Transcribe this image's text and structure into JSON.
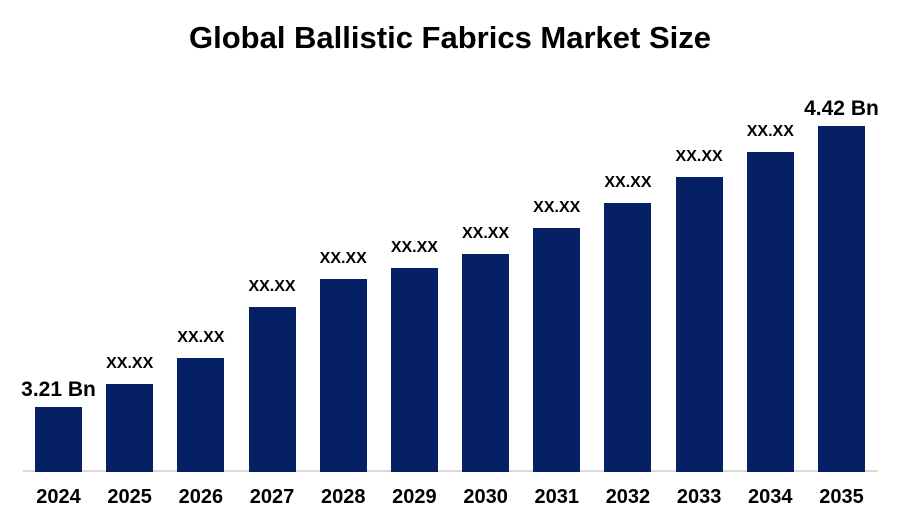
{
  "page": {
    "background_color": "#ffffff"
  },
  "chart_data": {
    "type": "bar",
    "title": "Global Ballistic Fabrics Market Size",
    "xlabel": "",
    "ylabel": "",
    "unit": "Bn",
    "categories": [
      "2024",
      "2025",
      "2026",
      "2027",
      "2028",
      "2029",
      "2030",
      "2031",
      "2032",
      "2033",
      "2034",
      "2035"
    ],
    "values": [
      3.21,
      3.31,
      3.42,
      3.64,
      3.76,
      3.81,
      3.87,
      3.98,
      4.09,
      4.2,
      4.31,
      4.42
    ],
    "value_labels": [
      "3.21 Bn",
      "XX.XX",
      "XX.XX",
      "XX.XX",
      "XX.XX",
      "XX.XX",
      "XX.XX",
      "XX.XX",
      "XX.XX",
      "XX.XX",
      "XX.XX",
      "4.42 Bn"
    ],
    "first_bar_label": "3.21 Bn",
    "last_bar_label": "4.42 Bn",
    "placeholder_label": "XX.XX",
    "ylim": [
      2.93,
      4.42
    ],
    "grid": false,
    "legend": false,
    "bar_color": "#052064",
    "axis_line_color": "#d9d9d9",
    "text_color": "#000000"
  }
}
